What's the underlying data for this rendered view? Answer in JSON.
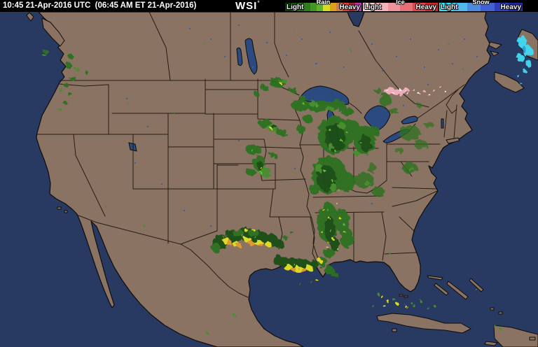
{
  "header": {
    "timestamp": "10:45 21-Apr-2016 UTC  (06:45 AM ET 21-Apr-2016)",
    "logo": {
      "text": "WSI",
      "degree": "°"
    },
    "legend": {
      "light_label": "Light",
      "heavy_label": "Heavy",
      "groups": [
        {
          "name": "Rain",
          "colors": [
            "#0b3a07",
            "#145010",
            "#236617",
            "#2f7d1d",
            "#459724",
            "#5eb32d",
            "#d9da22",
            "#dfa01f",
            "#cc7f47",
            "#da413c",
            "#a8232b",
            "#cc2fc0"
          ]
        },
        {
          "name": "Ice",
          "colors": [
            "#f7d2d5",
            "#f3b3ba",
            "#ee939c",
            "#e76f77",
            "#de474e",
            "#d02a31"
          ]
        },
        {
          "name": "Snow",
          "colors": [
            "#38e1f3",
            "#52b7ea",
            "#4d89de",
            "#4062d2",
            "#303fbd",
            "#2029a3"
          ]
        }
      ]
    }
  },
  "map": {
    "colors": {
      "ocean": "#283a62",
      "land": "#8b7364",
      "coast": "#0f0c08",
      "border": "#1a1309",
      "lake": "#2a4a80",
      "river_dot": "#3c60a0",
      "rain_green_dark": "#1e4f12",
      "rain_green": "#2e7120",
      "rain_green_bright": "#478f2e",
      "rain_green_vivid": "#68bf44",
      "rain_yellow": "#e3df25",
      "rain_orange": "#e59b2b",
      "ice_pink": "#f2b0bf",
      "ice_white": "#ffffff",
      "snow_cyan": "#3fd9f2",
      "snow_blue": "#2a9fd8"
    }
  }
}
